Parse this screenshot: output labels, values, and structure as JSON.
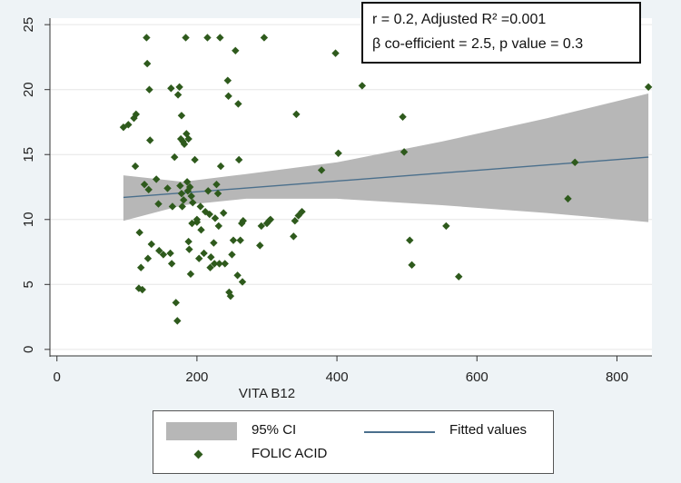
{
  "chart_data": {
    "type": "scatter",
    "title": "",
    "xlabel": "VITA B12",
    "ylabel": "",
    "xlim": [
      -10,
      850
    ],
    "ylim": [
      -0.5,
      25.5
    ],
    "xticks": [
      0,
      200,
      400,
      600,
      800
    ],
    "yticks": [
      0,
      5,
      10,
      15,
      20,
      25
    ],
    "grid": true,
    "legend_position": "bottom",
    "annotation_lines": [
      "r = 0.2, Adjusted R² =0.001",
      "β co-efficient = 2.5, p value = 0.3"
    ],
    "legend": {
      "ci_label": "95% CI",
      "fit_label": "Fitted values",
      "scatter_label": "FOLIC ACID"
    },
    "colors": {
      "scatter": "#2e5a1c",
      "fit": "#4a6f8c",
      "ci_band": "#b7b7b7",
      "plot_bg": "#ffffff",
      "outer_bg": "#eef3f6"
    },
    "fit_line": {
      "x": [
        95,
        845
      ],
      "y": [
        11.7,
        14.8
      ]
    },
    "ci_band": {
      "x": [
        95,
        180,
        270,
        400,
        550,
        700,
        845
      ],
      "lower": [
        9.9,
        11.1,
        11.6,
        11.6,
        11.1,
        10.5,
        9.8
      ],
      "upper": [
        13.4,
        12.9,
        13.5,
        14.4,
        16.0,
        17.8,
        19.7
      ]
    },
    "series": [
      {
        "name": "FOLIC ACID",
        "points": [
          [
            95,
            17.1
          ],
          [
            102,
            17.3
          ],
          [
            110,
            17.8
          ],
          [
            113,
            18.1
          ],
          [
            112,
            14.1
          ],
          [
            118,
            9.0
          ],
          [
            120,
            6.3
          ],
          [
            117,
            4.7
          ],
          [
            122,
            4.6
          ],
          [
            125,
            12.7
          ],
          [
            128,
            24.0
          ],
          [
            129,
            22.0
          ],
          [
            132,
            20.0
          ],
          [
            133,
            16.1
          ],
          [
            131,
            12.3
          ],
          [
            135,
            8.1
          ],
          [
            130,
            7.0
          ],
          [
            142,
            13.1
          ],
          [
            145,
            11.2
          ],
          [
            146,
            7.6
          ],
          [
            152,
            7.3
          ],
          [
            158,
            12.4
          ],
          [
            163,
            20.1
          ],
          [
            165,
            11.0
          ],
          [
            168,
            14.8
          ],
          [
            162,
            7.4
          ],
          [
            164,
            6.6
          ],
          [
            170,
            3.6
          ],
          [
            172,
            2.2
          ],
          [
            175,
            20.2
          ],
          [
            173,
            19.6
          ],
          [
            178,
            18.0
          ],
          [
            180,
            16.0
          ],
          [
            182,
            15.8
          ],
          [
            177,
            16.2
          ],
          [
            176,
            12.6
          ],
          [
            178,
            12.0
          ],
          [
            181,
            11.5
          ],
          [
            179,
            11.0
          ],
          [
            184,
            24.0
          ],
          [
            185,
            16.6
          ],
          [
            188,
            16.2
          ],
          [
            186,
            12.9
          ],
          [
            187,
            12.2
          ],
          [
            190,
            12.5
          ],
          [
            192,
            11.8
          ],
          [
            194,
            11.3
          ],
          [
            193,
            9.7
          ],
          [
            188,
            8.3
          ],
          [
            189,
            7.7
          ],
          [
            191,
            5.8
          ],
          [
            197,
            14.6
          ],
          [
            200,
            10.0
          ],
          [
            200,
            9.8
          ],
          [
            203,
            7.0
          ],
          [
            205,
            11.0
          ],
          [
            206,
            9.2
          ],
          [
            210,
            7.4
          ],
          [
            212,
            10.6
          ],
          [
            215,
            24.0
          ],
          [
            216,
            12.2
          ],
          [
            218,
            10.4
          ],
          [
            219,
            6.3
          ],
          [
            220,
            7.1
          ],
          [
            224,
            8.2
          ],
          [
            226,
            10.1
          ],
          [
            225,
            6.6
          ],
          [
            228,
            12.7
          ],
          [
            230,
            12.0
          ],
          [
            231,
            9.5
          ],
          [
            232,
            6.6
          ],
          [
            233,
            24.0
          ],
          [
            234,
            14.1
          ],
          [
            238,
            10.5
          ],
          [
            240,
            6.6
          ],
          [
            244,
            20.7
          ],
          [
            245,
            19.5
          ],
          [
            246,
            4.4
          ],
          [
            248,
            4.1
          ],
          [
            250,
            7.3
          ],
          [
            252,
            8.4
          ],
          [
            255,
            23.0
          ],
          [
            259,
            18.9
          ],
          [
            260,
            14.6
          ],
          [
            258,
            5.7
          ],
          [
            262,
            8.4
          ],
          [
            264,
            9.7
          ],
          [
            266,
            9.9
          ],
          [
            265,
            5.2
          ],
          [
            290,
            8.0
          ],
          [
            292,
            9.5
          ],
          [
            296,
            24.0
          ],
          [
            300,
            9.7
          ],
          [
            303,
            9.9
          ],
          [
            305,
            10.0
          ],
          [
            338,
            8.7
          ],
          [
            340,
            9.9
          ],
          [
            342,
            18.1
          ],
          [
            345,
            10.3
          ],
          [
            350,
            10.6
          ],
          [
            378,
            13.8
          ],
          [
            398,
            22.8
          ],
          [
            402,
            15.1
          ],
          [
            436,
            20.3
          ],
          [
            494,
            17.9
          ],
          [
            496,
            15.2
          ],
          [
            504,
            8.4
          ],
          [
            507,
            6.5
          ],
          [
            556,
            9.5
          ],
          [
            574,
            5.6
          ],
          [
            730,
            11.6
          ],
          [
            740,
            14.4
          ],
          [
            845,
            20.2
          ]
        ]
      }
    ]
  }
}
